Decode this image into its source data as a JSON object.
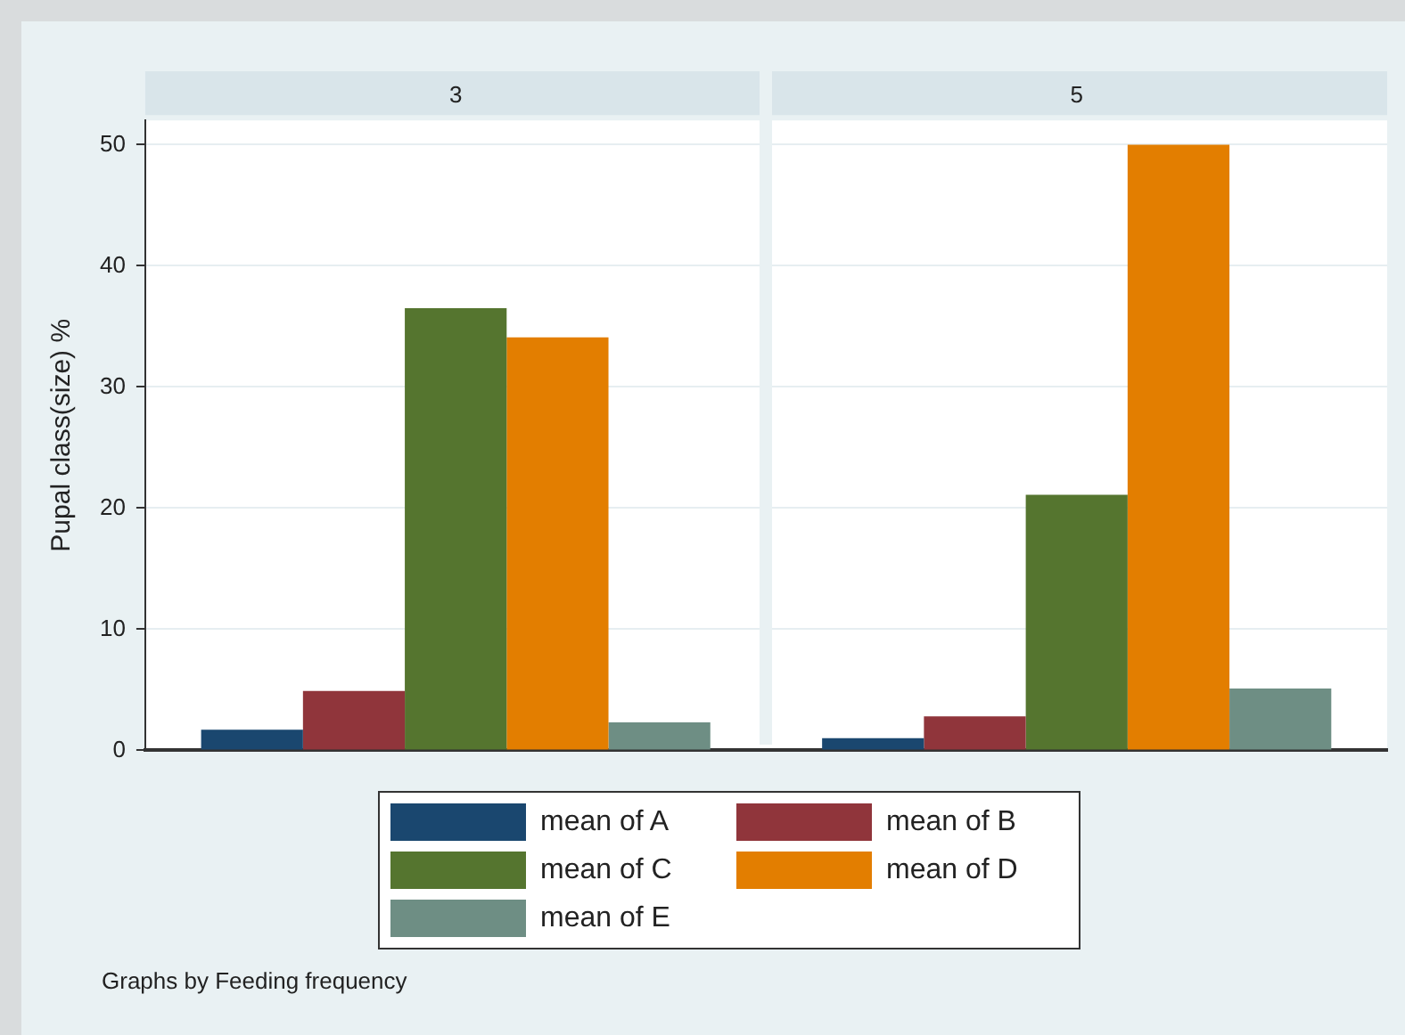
{
  "chart_data": {
    "type": "bar",
    "ylabel": "Pupal class(size) %",
    "categories": [
      "3",
      "5"
    ],
    "ylim": [
      0,
      52
    ],
    "yticks": [
      0,
      10,
      20,
      30,
      40,
      50
    ],
    "grid": "y",
    "legend": "bottom",
    "series": [
      {
        "name": "mean of A",
        "color": "#1a476f",
        "values": [
          1.7,
          1.0
        ]
      },
      {
        "name": "mean of B",
        "color": "#90353b",
        "values": [
          4.9,
          2.8
        ]
      },
      {
        "name": "mean of C",
        "color": "#55752f",
        "values": [
          36.5,
          21.1
        ]
      },
      {
        "name": "mean of D",
        "color": "#e37e00",
        "values": [
          34.1,
          50
        ]
      },
      {
        "name": "mean of E",
        "color": "#6e8e84",
        "values": [
          2.3,
          5.1
        ]
      }
    ],
    "annotations": [
      "Graphs by Feeding frequency"
    ]
  }
}
